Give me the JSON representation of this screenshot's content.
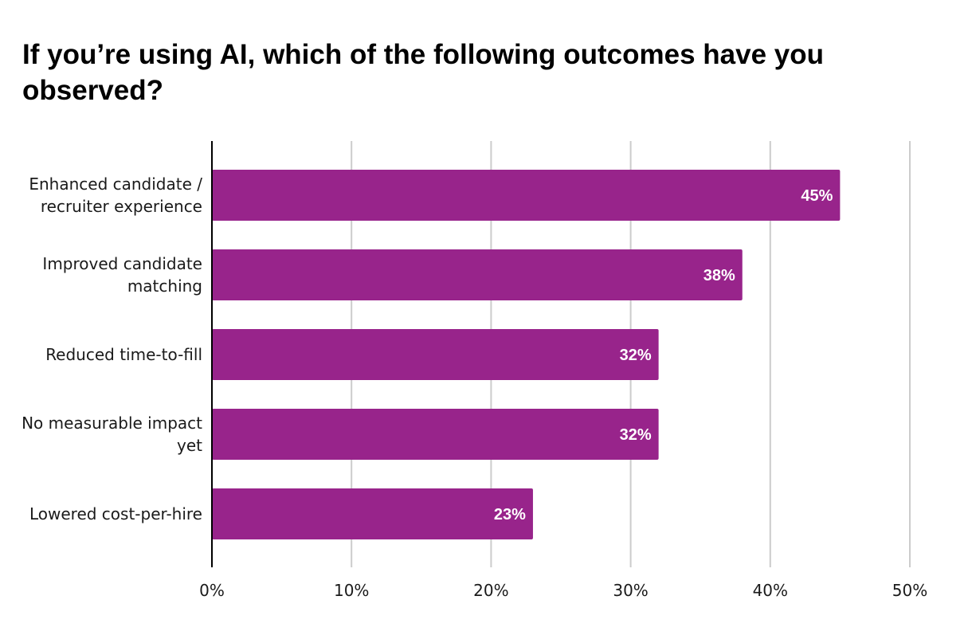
{
  "chart_data": {
    "type": "bar",
    "orientation": "horizontal",
    "title": "If you’re using AI, which of the following outcomes have you observed?",
    "xlabel": "",
    "ylabel": "",
    "categories": [
      [
        "Enhanced candidate /",
        "recruiter experience"
      ],
      [
        "Improved candidate",
        "matching"
      ],
      [
        "Reduced time-to-fill"
      ],
      [
        "No measurable impact",
        "yet"
      ],
      [
        "Lowered cost-per-hire"
      ]
    ],
    "values": [
      45,
      38,
      32,
      32,
      23
    ],
    "data_labels": [
      "45%",
      "38%",
      "32%",
      "32%",
      "23%"
    ],
    "xlim": [
      0,
      50
    ],
    "ticks": [
      0,
      10,
      20,
      30,
      40,
      50
    ],
    "tick_labels": [
      "0%",
      "10%",
      "20%",
      "30%",
      "40%",
      "50%"
    ],
    "grid": true,
    "legend": "none",
    "bar_color": "#98248b",
    "gridline_color": "#cccccc",
    "axis_color": "#000000"
  }
}
